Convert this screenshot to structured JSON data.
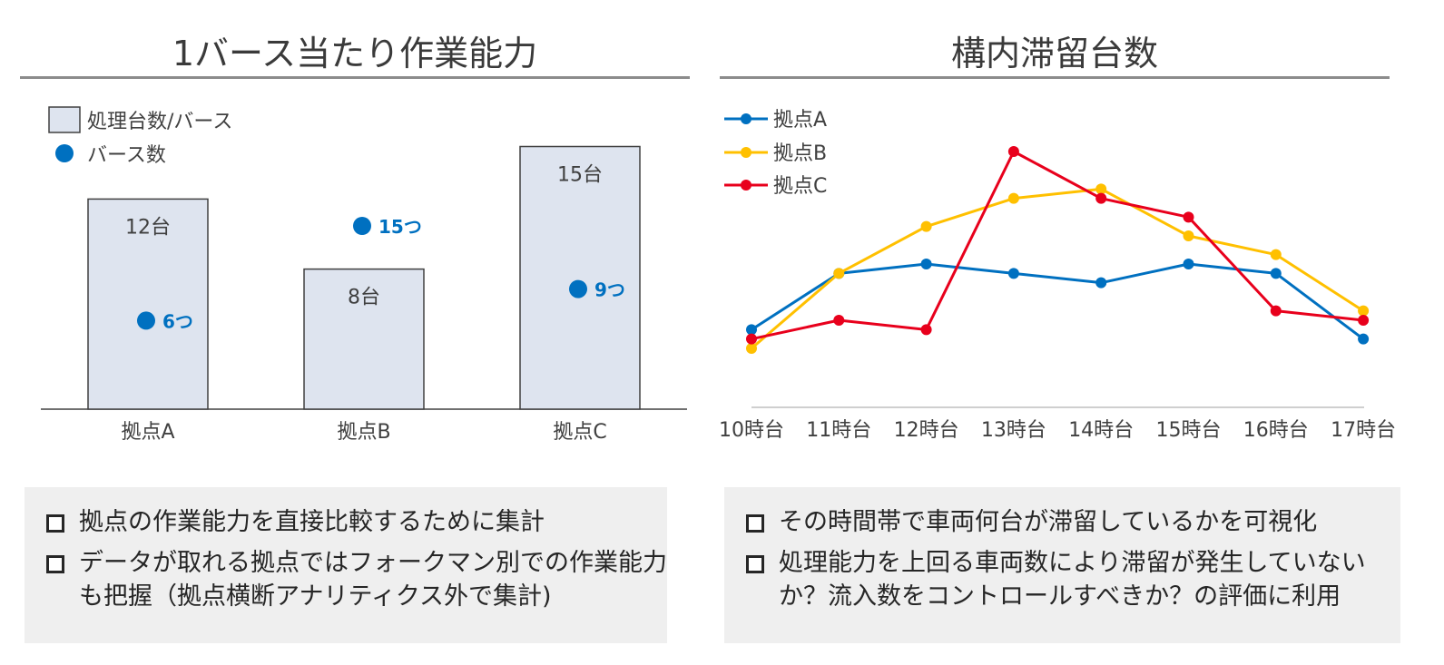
{
  "left": {
    "title": "1バース当たり作業能力",
    "notes": [
      "拠点の作業能力を直接比較するために集計",
      "データが取れる拠点ではフォークマン別での作業能力も把握（拠点横断アナリティクス外で集計)"
    ]
  },
  "right": {
    "title": "構内滞留台数",
    "notes": [
      "その時間帯で車両何台が滞留しているかを可視化",
      "処理能力を上回る車両数により滞留が発生していないか？流入数をコントロールすべきか？の評価に利用"
    ]
  },
  "chart_data": [
    {
      "type": "bar",
      "legend": [
        "処理台数/バース",
        "バース数"
      ],
      "categories": [
        "拠点A",
        "拠点B",
        "拠点C"
      ],
      "series": [
        {
          "name": "処理台数/バース",
          "values": [
            12,
            8,
            15
          ],
          "labels": [
            "12台",
            "8台",
            "15台"
          ],
          "color": "#dee4ef"
        },
        {
          "name": "バース数",
          "values": [
            6,
            15,
            9
          ],
          "labels": [
            "6つ",
            "15つ",
            "9つ"
          ],
          "color": "#0070c0"
        }
      ]
    },
    {
      "type": "line",
      "categories": [
        "10時台",
        "11時台",
        "12時台",
        "13時台",
        "14時台",
        "15時台",
        "16時台",
        "17時台"
      ],
      "series": [
        {
          "name": "拠点A",
          "color": "#0070c0",
          "values": [
            5,
            11,
            12,
            11,
            10,
            12,
            11,
            4
          ]
        },
        {
          "name": "拠点B",
          "color": "#ffc000",
          "values": [
            3,
            11,
            16,
            19,
            20,
            15,
            13,
            7
          ]
        },
        {
          "name": "拠点C",
          "color": "#e8001c",
          "values": [
            4,
            6,
            5,
            24,
            19,
            17,
            7,
            6
          ]
        }
      ]
    }
  ]
}
